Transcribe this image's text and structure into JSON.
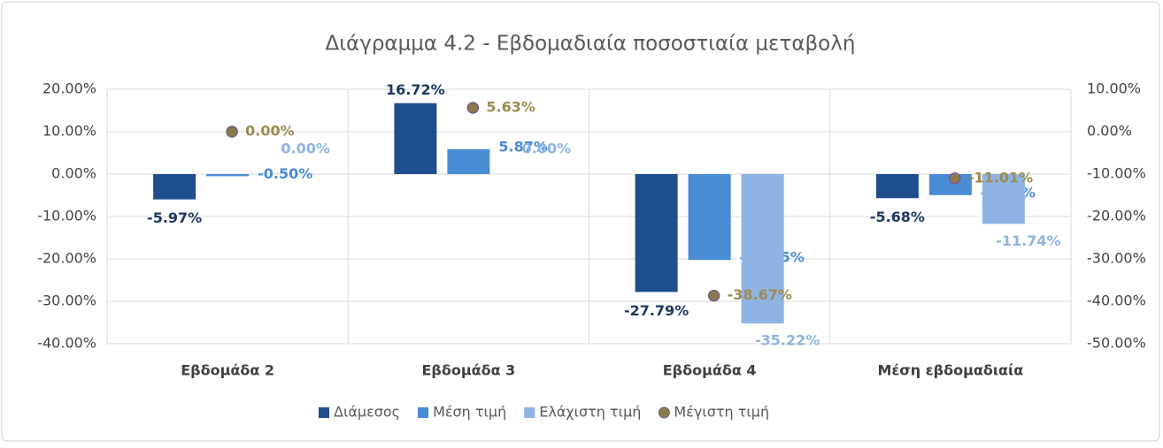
{
  "chart_data": {
    "type": "bar",
    "title": "Διάγραμμα 4.2 - Εβδομαδιαία ποσοστιαία μεταβολή",
    "categories": [
      "Εβδομάδα 2",
      "Εβδομάδα 3",
      "Εβδομάδα 4",
      "Μέση εβδομαδιαία"
    ],
    "series": [
      {
        "name": "Διάμεσος",
        "color": "#1f4e8c",
        "label_color": "#1f3864",
        "values": [
          -5.97,
          16.72,
          -27.79,
          -5.68
        ],
        "value_labels": [
          "-5.97%",
          "16.72%",
          "-27.79%",
          "-5.68%"
        ]
      },
      {
        "name": "Μέση τιμή",
        "color": "#4a8bd6",
        "label_color": "#4a8bd6",
        "values": [
          -0.5,
          5.87,
          -20.25,
          -4.96
        ],
        "value_labels": [
          "-0.50%",
          "5.87%",
          "-20.25%",
          "-4.96%"
        ]
      },
      {
        "name": "Ελάχιστη τιμή",
        "color": "#8eb4e3",
        "label_color": "#8eb4e3",
        "values": [
          0.0,
          0.0,
          -35.22,
          -11.74
        ],
        "value_labels": [
          "0.00%",
          "0.00%",
          "-35.22%",
          "-11.74%"
        ]
      },
      {
        "name": "Μέγιστη τιμή",
        "color": "#8c7a4a",
        "label_color": "#9c8a4f",
        "type": "scatter",
        "axis": "y2",
        "values": [
          0.0,
          5.63,
          -38.67,
          -11.01
        ],
        "value_labels": [
          "0.00%",
          "5.63%",
          "-38.67%",
          "-11.01%"
        ]
      }
    ],
    "ylim": [
      -40,
      20
    ],
    "yticks": [
      {
        "value": -40,
        "label": "-40.00%"
      },
      {
        "value": -30,
        "label": "-30.00%"
      },
      {
        "value": -20,
        "label": "-20.00%"
      },
      {
        "value": -10,
        "label": "-10.00%"
      },
      {
        "value": 0,
        "label": "0.00%"
      },
      {
        "value": 10,
        "label": "10.00%"
      },
      {
        "value": 20,
        "label": "20.00%"
      }
    ],
    "y2lim": [
      -50,
      10
    ],
    "y2ticks": [
      {
        "value": -50,
        "label": "-50.00%"
      },
      {
        "value": -40,
        "label": "-40.00%"
      },
      {
        "value": -30,
        "label": "-30.00%"
      },
      {
        "value": -20,
        "label": "-20.00%"
      },
      {
        "value": -10,
        "label": "-10.00%"
      },
      {
        "value": 0,
        "label": "0.00%"
      },
      {
        "value": 10,
        "label": "10.00%"
      }
    ],
    "grid": true,
    "legend": "bottom"
  }
}
